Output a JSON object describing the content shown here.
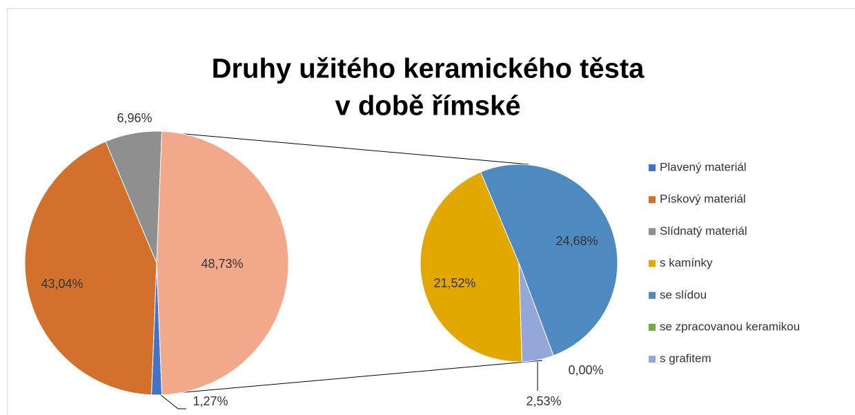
{
  "chart_data": {
    "type": "pie-of-pie",
    "title": [
      "Druhy užitého keramického těsta",
      "v době římské"
    ],
    "primary": {
      "categories": [
        "Plavený materiál",
        "Pískový materiál",
        "Slídnatý materiál"
      ],
      "values": [
        1.27,
        43.04,
        6.96
      ],
      "value_labels": [
        "1,27%",
        "43,04%",
        "6,96%"
      ],
      "colors": [
        "#4472c4",
        "#d2702c",
        "#8f8f8f"
      ]
    },
    "other": {
      "value": 48.73,
      "label": "48,73%",
      "color": "#f2a98b"
    },
    "secondary": {
      "categories": [
        "s kamínky",
        "se slídou",
        "se zpracovanou keramikou",
        "s grafitem"
      ],
      "values": [
        21.52,
        24.68,
        0.0,
        2.53
      ],
      "value_labels": [
        "21,52%",
        "24,68%",
        "0,00%",
        "2,53%"
      ],
      "colors": [
        "#e2a800",
        "#4e8abf",
        "#70ad47",
        "#95a6d9"
      ]
    },
    "legend": "right"
  }
}
